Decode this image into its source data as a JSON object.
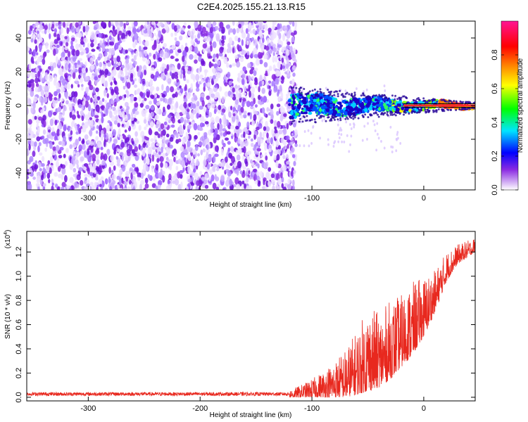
{
  "title": "C2E4.2025.155.21.13.R15",
  "chart_data": [
    {
      "type": "heatmap",
      "xlabel": "Height of straight line (km)",
      "ylabel": "Frequency (Hz)",
      "xlim": [
        -355,
        46
      ],
      "ylim": [
        -50,
        50
      ],
      "x_ticks": [
        "-300",
        "-200",
        "-100",
        "0"
      ],
      "y_ticks": [
        "-40",
        "-20",
        "0",
        "20",
        "40"
      ],
      "colorbar": {
        "label": "Normalized spectral amplitude",
        "range": [
          0,
          1
        ],
        "ticks": [
          "0.0",
          "0.2",
          "0.4",
          "0.6",
          "0.8"
        ],
        "colors": [
          "#ffffff",
          "#7f00ff",
          "#0000ff",
          "#00ffff",
          "#00ff00",
          "#ffff00",
          "#ff7f00",
          "#ff0000",
          "#ff00ff"
        ]
      },
      "regions": [
        {
          "x_range": [
            -355,
            -120
          ],
          "y_range": [
            -50,
            50
          ],
          "amplitude": [
            0.0,
            0.15
          ],
          "description_level": "noise"
        },
        {
          "x_range": [
            -120,
            46
          ],
          "center_frequency": 0,
          "amplitude": [
            0.2,
            1.0
          ],
          "description_level": "signal"
        }
      ]
    },
    {
      "type": "line",
      "xlabel": "Height of straight line (km)",
      "ylabel": "SNR (10 * v/v)",
      "y_multiplier": "(x10",
      "y_multiplier_exp": "4",
      "y_multiplier_close": ")",
      "xlim": [
        -355,
        46
      ],
      "ylim": [
        -0.03,
        1.37
      ],
      "x_ticks": [
        "-300",
        "-200",
        "-100",
        "0"
      ],
      "y_ticks": [
        "0.0",
        "0.2",
        "0.4",
        "0.6",
        "0.8",
        "1.0",
        "1.2"
      ],
      "series": [
        {
          "color": "#e8281e",
          "envelope_x": [
            -355,
            -120,
            -110,
            -100,
            -90,
            -80,
            -70,
            -60,
            -50,
            -40,
            -30,
            -20,
            -10,
            0,
            10,
            20,
            30,
            46
          ],
          "envelope_low": [
            0.0,
            0.0,
            0.0,
            0.0,
            0.0,
            0.0,
            0.0,
            0.02,
            0.05,
            0.08,
            0.15,
            0.25,
            0.35,
            0.5,
            0.7,
            0.95,
            1.1,
            1.2
          ],
          "envelope_high": [
            0.05,
            0.06,
            0.1,
            0.15,
            0.22,
            0.3,
            0.4,
            0.55,
            0.75,
            0.7,
            0.8,
            0.85,
            0.95,
            1.0,
            1.05,
            1.2,
            1.26,
            1.32
          ]
        }
      ]
    }
  ]
}
